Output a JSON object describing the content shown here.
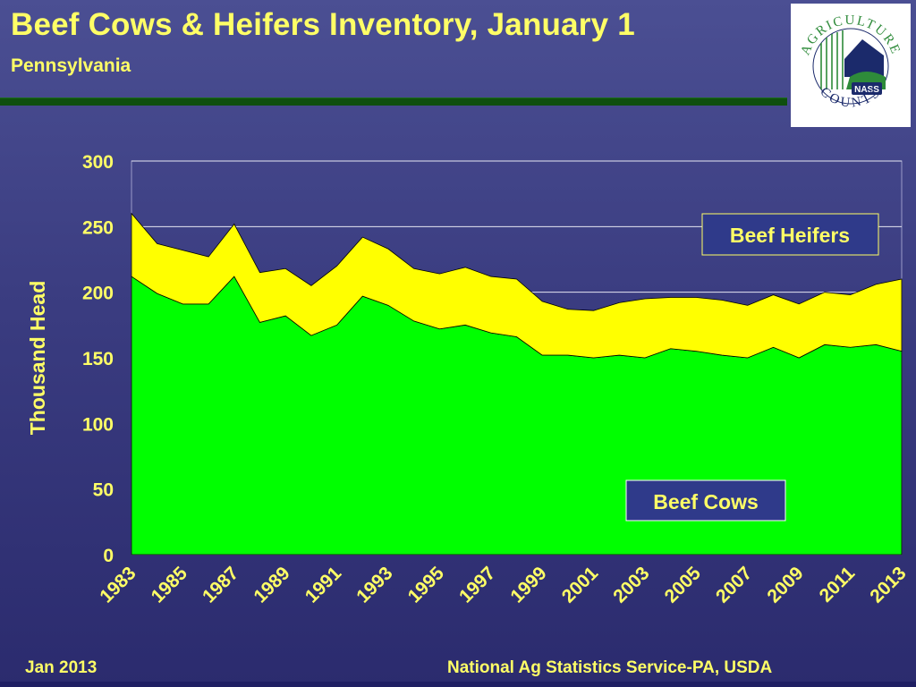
{
  "slide": {
    "title": "Beef Cows & Heifers Inventory, January 1",
    "subtitle": "Pennsylvania",
    "footer_left": "Jan 2013",
    "footer_right": "National Ag Statistics Service-PA, USDA"
  },
  "logo": {
    "arc_top": "AGRICULTURE",
    "arc_bottom": "COUNTS",
    "badge": "NASS",
    "colors": {
      "green": "#2e8b3a",
      "navy": "#1b2a6b"
    }
  },
  "chart_data": {
    "type": "area",
    "stacked": true,
    "title": "",
    "xlabel": "",
    "ylabel": "Thousand Head",
    "ylim": [
      0,
      300
    ],
    "yticks": [
      0,
      50,
      100,
      150,
      200,
      250,
      300
    ],
    "xlim": [
      1983,
      2013
    ],
    "xticks": [
      1983,
      1985,
      1987,
      1989,
      1991,
      1993,
      1995,
      1997,
      1999,
      2001,
      2003,
      2005,
      2007,
      2009,
      2011,
      2013
    ],
    "x": [
      1983,
      1984,
      1985,
      1986,
      1987,
      1988,
      1989,
      1990,
      1991,
      1992,
      1993,
      1994,
      1995,
      1996,
      1997,
      1998,
      1999,
      2000,
      2001,
      2002,
      2003,
      2004,
      2005,
      2006,
      2007,
      2008,
      2009,
      2010,
      2011,
      2012,
      2013
    ],
    "series": [
      {
        "name": "Beef Cows",
        "color": "#00ff00",
        "values": [
          212,
          199,
          191,
          191,
          212,
          177,
          182,
          167,
          175,
          197,
          190,
          178,
          172,
          175,
          169,
          166,
          152,
          152,
          150,
          152,
          150,
          157,
          155,
          152,
          150,
          158,
          150,
          160,
          158,
          160,
          155
        ]
      },
      {
        "name": "Beef Heifers",
        "color": "#ffff00",
        "values": [
          48,
          38,
          41,
          36,
          40,
          38,
          36,
          38,
          45,
          45,
          43,
          40,
          42,
          44,
          43,
          44,
          41,
          35,
          36,
          40,
          45,
          39,
          41,
          42,
          40,
          40,
          41,
          40,
          40,
          46,
          55
        ]
      }
    ],
    "legend": "inline labels (Beef Heifers upper-right, Beef Cows lower-right)",
    "grid": "horizontal major gridlines"
  }
}
